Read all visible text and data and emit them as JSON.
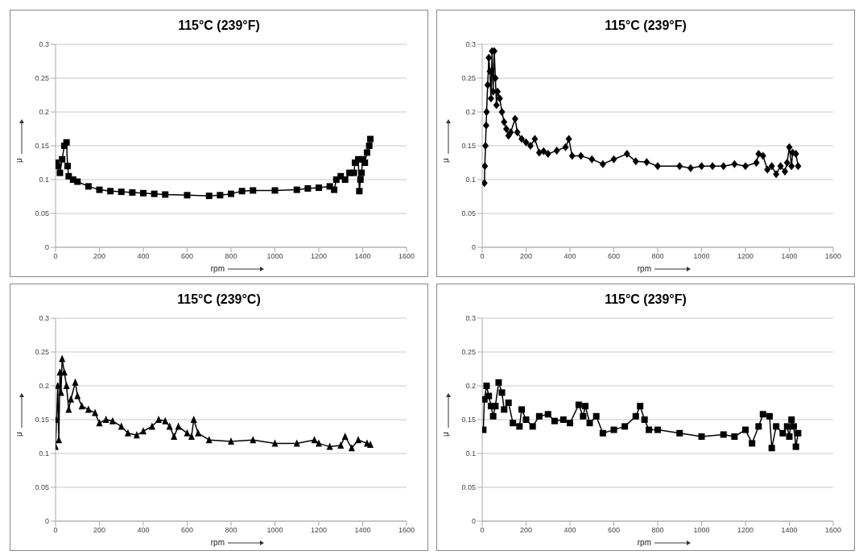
{
  "chart_data": [
    {
      "type": "line",
      "title": "115°C (239°F)",
      "xlabel": "rpm",
      "ylabel": "μ",
      "marker": "square",
      "grid": "y",
      "xlim": [
        0,
        1600
      ],
      "xticks": [
        0,
        200,
        400,
        600,
        800,
        1000,
        1200,
        1400,
        1600
      ],
      "ylim": [
        0,
        0.3
      ],
      "yticks": [
        0,
        0.05,
        0.1,
        0.15,
        0.2,
        0.25,
        0.3
      ],
      "series": [
        {
          "color": "#000000",
          "x": [
            0,
            10,
            20,
            30,
            40,
            50,
            55,
            60,
            80,
            100,
            150,
            200,
            250,
            300,
            350,
            400,
            450,
            500,
            600,
            700,
            750,
            800,
            850,
            900,
            1000,
            1100,
            1150,
            1200,
            1250,
            1270,
            1280,
            1300,
            1320,
            1340,
            1360,
            1365,
            1380,
            1385,
            1390,
            1395,
            1400,
            1410,
            1420,
            1430,
            1435
          ],
          "values": [
            0.125,
            0.12,
            0.11,
            0.13,
            0.15,
            0.155,
            0.12,
            0.105,
            0.1,
            0.097,
            0.09,
            0.085,
            0.083,
            0.082,
            0.081,
            0.08,
            0.079,
            0.078,
            0.077,
            0.076,
            0.077,
            0.079,
            0.083,
            0.084,
            0.084,
            0.085,
            0.087,
            0.088,
            0.09,
            0.085,
            0.1,
            0.105,
            0.1,
            0.11,
            0.11,
            0.125,
            0.13,
            0.083,
            0.1,
            0.11,
            0.13,
            0.125,
            0.14,
            0.15,
            0.16
          ]
        }
      ]
    },
    {
      "type": "line",
      "title": "115°C (239°F)",
      "xlabel": "rpm",
      "ylabel": "μ",
      "marker": "diamond",
      "grid": "y",
      "xlim": [
        0,
        1600
      ],
      "xticks": [
        0,
        200,
        400,
        600,
        800,
        1000,
        1200,
        1400,
        1600
      ],
      "ylim": [
        0,
        0.3
      ],
      "yticks": [
        0,
        0.05,
        0.1,
        0.15,
        0.2,
        0.25,
        0.3
      ],
      "series": [
        {
          "color": "#000000",
          "x": [
            10,
            12,
            15,
            18,
            20,
            25,
            30,
            35,
            40,
            45,
            50,
            55,
            60,
            65,
            70,
            80,
            90,
            100,
            110,
            120,
            130,
            150,
            160,
            180,
            200,
            220,
            240,
            260,
            280,
            300,
            340,
            380,
            395,
            410,
            450,
            500,
            550,
            600,
            660,
            700,
            750,
            800,
            900,
            950,
            1000,
            1050,
            1100,
            1150,
            1200,
            1250,
            1260,
            1280,
            1300,
            1320,
            1340,
            1360,
            1380,
            1390,
            1400,
            1410,
            1415,
            1430,
            1440
          ],
          "values": [
            0.095,
            0.12,
            0.15,
            0.18,
            0.2,
            0.24,
            0.28,
            0.26,
            0.22,
            0.29,
            0.23,
            0.29,
            0.25,
            0.21,
            0.23,
            0.22,
            0.2,
            0.185,
            0.175,
            0.165,
            0.17,
            0.19,
            0.17,
            0.16,
            0.155,
            0.15,
            0.16,
            0.14,
            0.142,
            0.138,
            0.143,
            0.148,
            0.16,
            0.135,
            0.135,
            0.13,
            0.123,
            0.13,
            0.138,
            0.127,
            0.126,
            0.12,
            0.12,
            0.117,
            0.12,
            0.12,
            0.12,
            0.123,
            0.12,
            0.125,
            0.138,
            0.135,
            0.115,
            0.12,
            0.108,
            0.12,
            0.112,
            0.125,
            0.148,
            0.12,
            0.14,
            0.138,
            0.12
          ]
        }
      ]
    },
    {
      "type": "line",
      "title": "115°C (239°C)",
      "xlabel": "rpm",
      "ylabel": "μ",
      "marker": "triangle",
      "grid": "y",
      "xlim": [
        0,
        1600
      ],
      "xticks": [
        0,
        200,
        400,
        600,
        800,
        1000,
        1200,
        1400,
        1600
      ],
      "ylim": [
        0,
        0.3
      ],
      "yticks": [
        0,
        0.05,
        0.1,
        0.15,
        0.2,
        0.25,
        0.3
      ],
      "series": [
        {
          "color": "#000000",
          "x": [
            0,
            5,
            10,
            15,
            20,
            25,
            30,
            40,
            50,
            60,
            70,
            90,
            100,
            120,
            150,
            180,
            200,
            230,
            260,
            300,
            330,
            370,
            400,
            440,
            470,
            500,
            520,
            540,
            560,
            600,
            620,
            630,
            650,
            700,
            800,
            900,
            1000,
            1100,
            1180,
            1200,
            1250,
            1300,
            1320,
            1350,
            1380,
            1420,
            1435
          ],
          "values": [
            0.11,
            0.15,
            0.2,
            0.12,
            0.22,
            0.19,
            0.24,
            0.22,
            0.2,
            0.165,
            0.18,
            0.205,
            0.185,
            0.17,
            0.165,
            0.16,
            0.145,
            0.15,
            0.148,
            0.14,
            0.13,
            0.127,
            0.133,
            0.14,
            0.15,
            0.148,
            0.14,
            0.125,
            0.14,
            0.13,
            0.125,
            0.15,
            0.13,
            0.12,
            0.118,
            0.12,
            0.115,
            0.115,
            0.12,
            0.115,
            0.11,
            0.112,
            0.125,
            0.108,
            0.12,
            0.115,
            0.113
          ]
        }
      ]
    },
    {
      "type": "line",
      "title": "115°C (239°F)",
      "xlabel": "rpm",
      "ylabel": "μ",
      "marker": "square",
      "grid": "y",
      "xlim": [
        0,
        1600
      ],
      "xticks": [
        0,
        200,
        400,
        600,
        800,
        1000,
        1200,
        1400,
        1600
      ],
      "ylim": [
        0,
        0.3
      ],
      "yticks": [
        0,
        0.05,
        0.1,
        0.15,
        0.2,
        0.25,
        0.3
      ],
      "series": [
        {
          "color": "#000000",
          "x": [
            5,
            10,
            20,
            30,
            40,
            50,
            60,
            75,
            90,
            100,
            120,
            140,
            170,
            180,
            200,
            230,
            260,
            300,
            330,
            370,
            400,
            440,
            460,
            470,
            490,
            520,
            550,
            600,
            650,
            700,
            720,
            740,
            760,
            800,
            900,
            1000,
            1100,
            1150,
            1200,
            1230,
            1260,
            1280,
            1310,
            1320,
            1340,
            1370,
            1390,
            1400,
            1410,
            1420,
            1430,
            1440
          ],
          "values": [
            0.135,
            0.18,
            0.2,
            0.185,
            0.17,
            0.155,
            0.17,
            0.205,
            0.19,
            0.165,
            0.175,
            0.145,
            0.14,
            0.165,
            0.15,
            0.14,
            0.155,
            0.158,
            0.148,
            0.15,
            0.145,
            0.172,
            0.155,
            0.17,
            0.145,
            0.155,
            0.13,
            0.135,
            0.14,
            0.155,
            0.17,
            0.15,
            0.135,
            0.135,
            0.13,
            0.125,
            0.128,
            0.125,
            0.135,
            0.115,
            0.14,
            0.158,
            0.155,
            0.108,
            0.14,
            0.13,
            0.14,
            0.125,
            0.15,
            0.14,
            0.11,
            0.13
          ]
        }
      ]
    }
  ]
}
